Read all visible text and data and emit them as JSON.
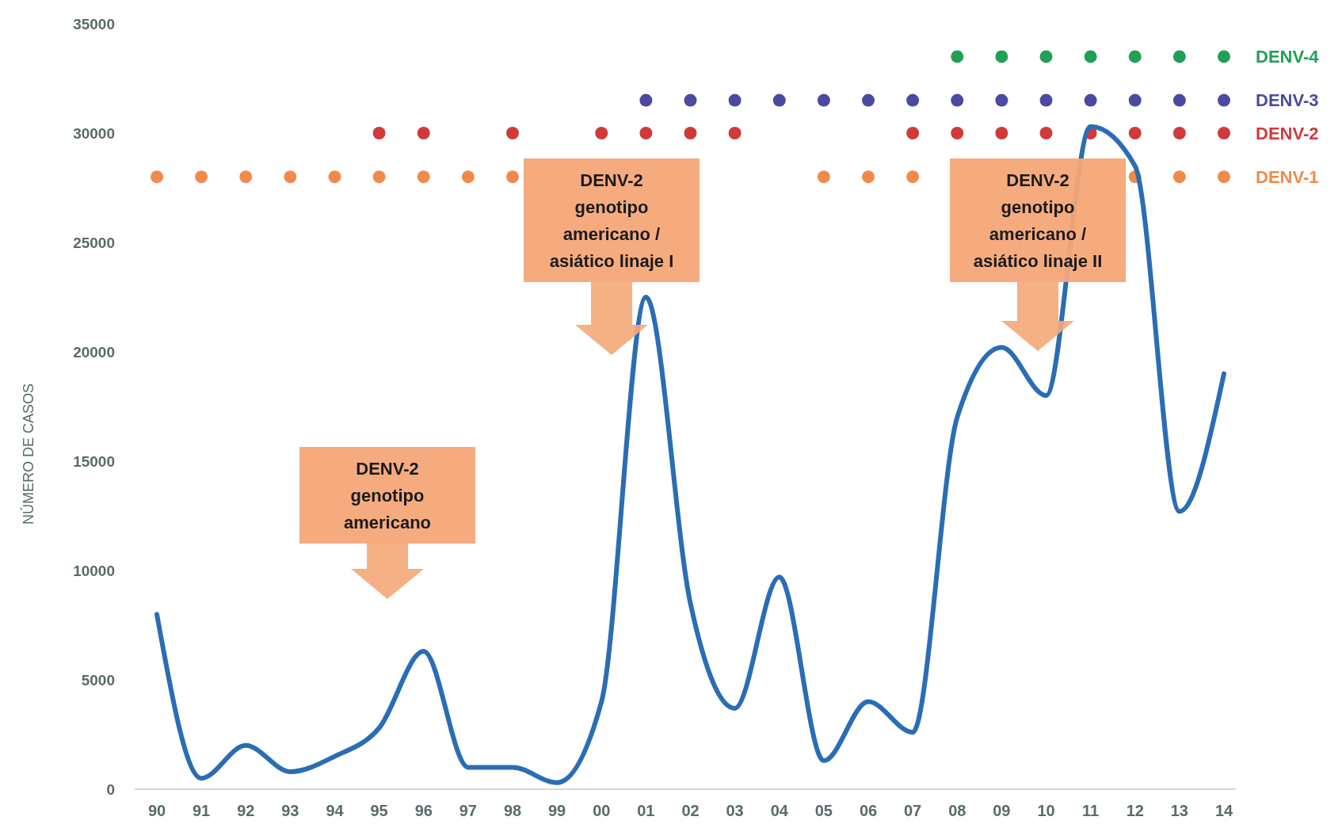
{
  "chart_data": {
    "type": "line",
    "ylabel": "NÚMERO DE CASOS",
    "categories": [
      "90",
      "91",
      "92",
      "93",
      "94",
      "95",
      "96",
      "97",
      "98",
      "99",
      "00",
      "01",
      "02",
      "03",
      "04",
      "05",
      "06",
      "07",
      "08",
      "09",
      "10",
      "11",
      "12",
      "13",
      "14"
    ],
    "ylim": [
      0,
      35000
    ],
    "yticks": [
      0,
      5000,
      10000,
      15000,
      20000,
      25000,
      30000,
      35000
    ],
    "series": [
      {
        "color": "#2a6db5",
        "marker": "none",
        "values": [
          8000,
          500,
          2000,
          800,
          1500,
          2800,
          6300,
          1000,
          1000,
          300,
          4000,
          22500,
          8500,
          3700,
          9700,
          1300,
          4000,
          2600,
          17000,
          20200,
          18000,
          30300,
          28500,
          12700,
          19000
        ]
      },
      {
        "type": "scatter",
        "name": "DENV-1",
        "color": "#f08a4b",
        "marker": "circle",
        "values": [
          28000,
          28000,
          28000,
          28000,
          28000,
          28000,
          28000,
          28000,
          28000,
          null,
          null,
          null,
          null,
          null,
          null,
          28000,
          28000,
          28000,
          null,
          null,
          null,
          null,
          28000,
          28000,
          28000
        ]
      },
      {
        "type": "scatter",
        "name": "DENV-2",
        "color": "#d03a3a",
        "marker": "circle",
        "values": [
          null,
          null,
          null,
          null,
          null,
          30000,
          30000,
          null,
          30000,
          null,
          30000,
          30000,
          30000,
          30000,
          null,
          null,
          null,
          30000,
          30000,
          30000,
          30000,
          30000,
          30000,
          30000,
          30000
        ]
      },
      {
        "type": "scatter",
        "name": "DENV-3",
        "color": "#4b4aa0",
        "marker": "circle",
        "values": [
          null,
          null,
          null,
          null,
          null,
          null,
          null,
          null,
          null,
          null,
          null,
          31500,
          31500,
          31500,
          31500,
          31500,
          31500,
          31500,
          31500,
          31500,
          31500,
          31500,
          31500,
          31500,
          31500
        ]
      },
      {
        "type": "scatter",
        "name": "DENV-4",
        "color": "#1fa055",
        "marker": "circle",
        "values": [
          null,
          null,
          null,
          null,
          null,
          null,
          null,
          null,
          null,
          null,
          null,
          null,
          null,
          null,
          null,
          null,
          null,
          null,
          33500,
          33500,
          33500,
          33500,
          33500,
          33500,
          33500
        ]
      }
    ],
    "annotations": [
      "DENV-2\ngenotipo\namericano",
      "DENV-2\ngenotipo\namericano /\nasiático linaje I",
      "DENV-2\ngenotipo\namericano /\nasiático linaje II"
    ]
  }
}
